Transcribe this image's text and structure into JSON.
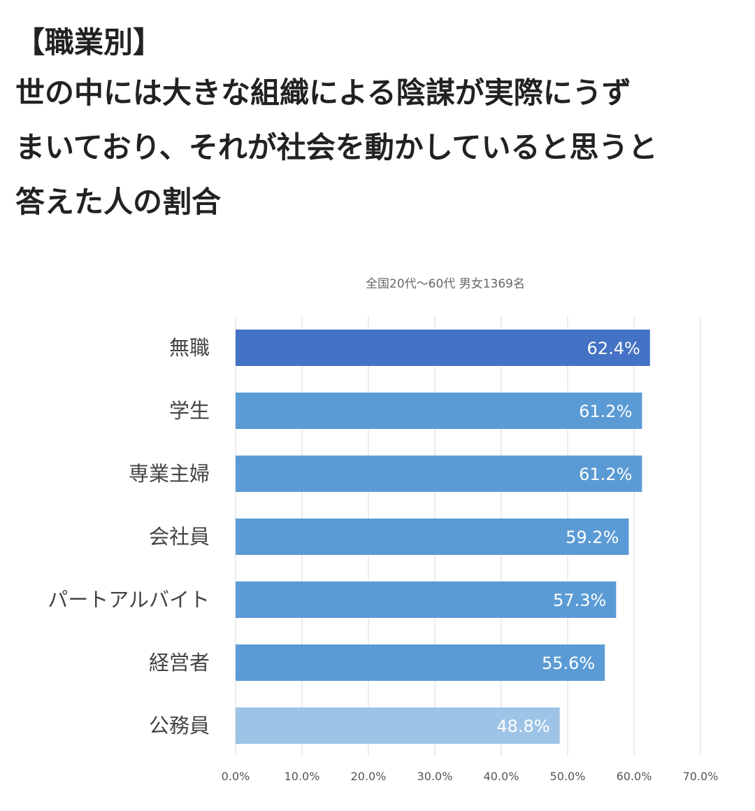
{
  "header": {
    "title_lines": [
      "【職業別】",
      "世の中には大きな組織による陰謀が実際にうず",
      "まいており、それが社会を動かしていると思うと",
      "答えた人の割合"
    ]
  },
  "chart_data": {
    "type": "bar",
    "orientation": "horizontal",
    "subtitle": "全国20代〜60代 男女1369名",
    "categories": [
      "無職",
      "学生",
      "専業主婦",
      "会社員",
      "パートアルバイト",
      "経営者",
      "公務員"
    ],
    "values": [
      62.4,
      61.2,
      61.2,
      59.2,
      57.3,
      55.6,
      48.8
    ],
    "value_labels": [
      "62.4%",
      "61.2%",
      "61.2%",
      "59.2%",
      "57.3%",
      "55.6%",
      "48.8%"
    ],
    "bar_colors": [
      "#4472c4",
      "#5b9bd5",
      "#5b9bd5",
      "#5b9bd5",
      "#5b9bd5",
      "#5b9bd5",
      "#9dc3e6"
    ],
    "xlim": [
      0,
      70
    ],
    "x_ticks": [
      "0.0%",
      "10.0%",
      "20.0%",
      "30.0%",
      "40.0%",
      "50.0%",
      "60.0%",
      "70.0%"
    ],
    "grid": true,
    "legend": "none",
    "xlabel": "",
    "ylabel": ""
  }
}
